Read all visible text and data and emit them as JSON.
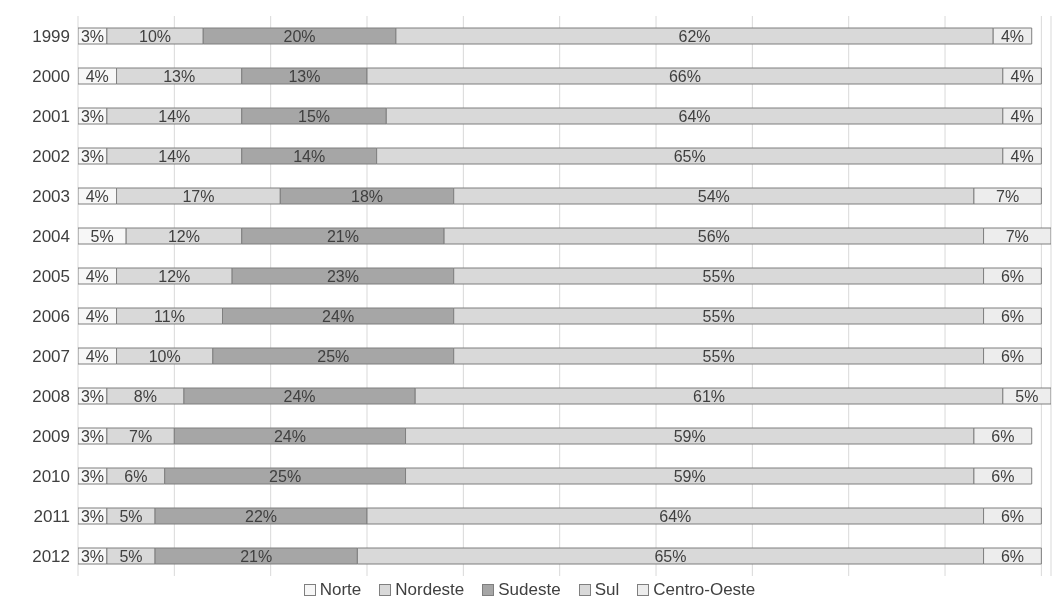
{
  "chart_data": {
    "type": "bar",
    "orientation": "horizontal",
    "stacked": true,
    "categories": [
      "1999",
      "2000",
      "2001",
      "2002",
      "2003",
      "2004",
      "2005",
      "2006",
      "2007",
      "2008",
      "2009",
      "2010",
      "2011",
      "2012"
    ],
    "series": [
      {
        "name": "Norte",
        "color": "#f7f7f7",
        "values": [
          3,
          4,
          3,
          3,
          4,
          5,
          4,
          4,
          4,
          3,
          3,
          3,
          3,
          3
        ],
        "value_labels": [
          "3%",
          "4%",
          "3%",
          "3%",
          "4%",
          "5%",
          "4%",
          "4%",
          "4%",
          "3%",
          "3%",
          "3%",
          "3%",
          "3%"
        ]
      },
      {
        "name": "Nordeste",
        "color": "#d9d9d9",
        "values": [
          10,
          13,
          14,
          14,
          17,
          12,
          12,
          11,
          10,
          8,
          7,
          6,
          5,
          5
        ],
        "value_labels": [
          "10%",
          "13%",
          "14%",
          "14%",
          "17%",
          "12%",
          "12%",
          "11%",
          "10%",
          "8%",
          "7%",
          "6%",
          "5%",
          "5%"
        ]
      },
      {
        "name": "Sudeste",
        "color": "#a6a6a6",
        "values": [
          20,
          13,
          15,
          14,
          18,
          21,
          23,
          24,
          25,
          24,
          24,
          25,
          22,
          21
        ],
        "value_labels": [
          "20%",
          "13%",
          "15%",
          "14%",
          "18%",
          "21%",
          "23%",
          "24%",
          "25%",
          "24%",
          "24%",
          "25%",
          "22%",
          "21%"
        ]
      },
      {
        "name": "Sul",
        "color": "#d9d9d9",
        "values": [
          62,
          66,
          64,
          65,
          54,
          56,
          55,
          55,
          55,
          61,
          59,
          59,
          64,
          65
        ],
        "value_labels": [
          "62%",
          "66%",
          "64%",
          "65%",
          "54%",
          "56%",
          "55%",
          "55%",
          "55%",
          "61%",
          "59%",
          "59%",
          "64%",
          "65%"
        ]
      },
      {
        "name": "Centro-Oeste",
        "color": "#ededed",
        "values": [
          4,
          4,
          4,
          4,
          7,
          7,
          6,
          6,
          6,
          5,
          6,
          6,
          6,
          6
        ],
        "value_labels": [
          "4%",
          "4%",
          "4%",
          "4%",
          "7%",
          "7%",
          "6%",
          "6%",
          "6%",
          "5%",
          "6%",
          "6%",
          "6%",
          "6%"
        ]
      }
    ],
    "xlim": [
      0,
      101
    ],
    "xticks": [
      {
        "value": 0,
        "label": null
      },
      {
        "value": 10,
        "label": null
      },
      {
        "value": 20,
        "label": null
      },
      {
        "value": 30,
        "label": null
      },
      {
        "value": 40,
        "label": null
      },
      {
        "value": 50,
        "label": null
      },
      {
        "value": 60,
        "label": null
      },
      {
        "value": 70,
        "label": null
      },
      {
        "value": 80,
        "label": null
      },
      {
        "value": 90,
        "label": null
      },
      {
        "value": 100,
        "label": null
      }
    ],
    "tick_labels": "y",
    "grid": "x",
    "legend": "bottom"
  }
}
